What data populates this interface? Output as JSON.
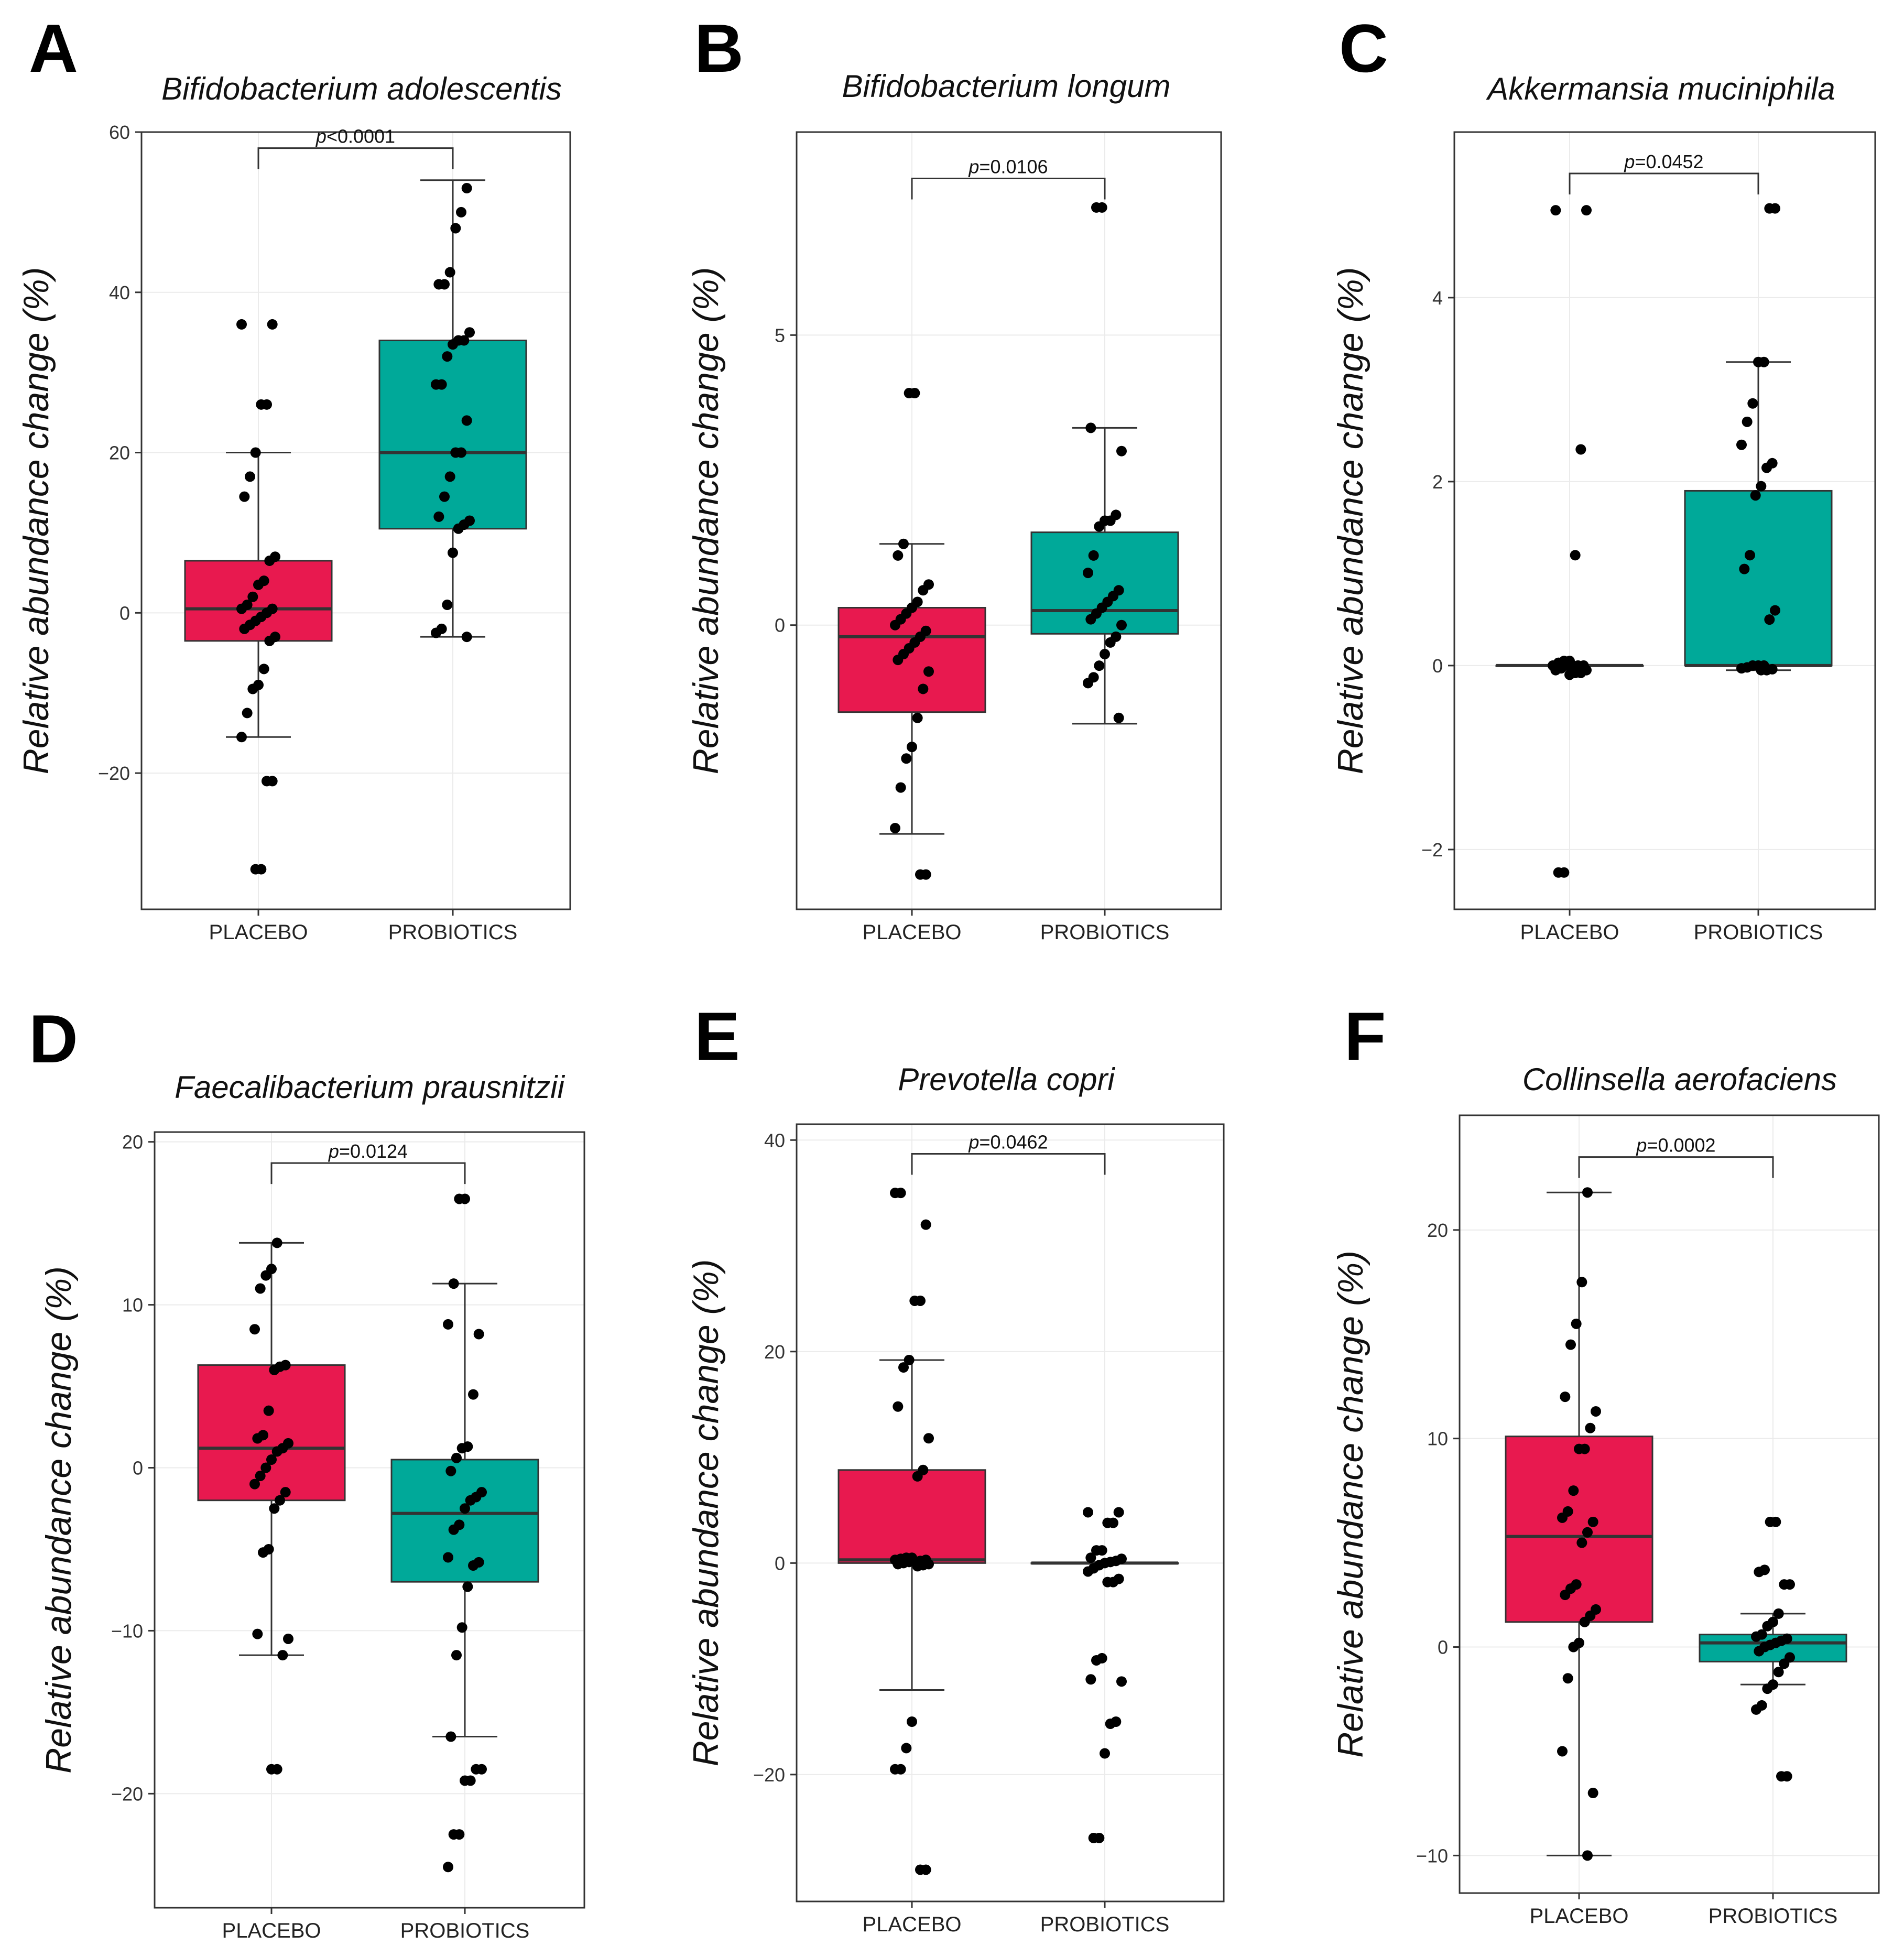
{
  "figure": {
    "colors": {
      "placebo": "#E8194F",
      "probiotics": "#00A999",
      "points": "#000000",
      "frame": "#333333",
      "grid": "#EBEBEB"
    },
    "p_prefix": "p"
  },
  "chart_data": [
    {
      "panel": "A",
      "type": "box",
      "title": "Bifidobacterium adolescentis",
      "ylabel": "Relative abundance change (%)",
      "categories": [
        "PLACEBO",
        "PROBIOTICS"
      ],
      "ylim": [
        -37,
        60
      ],
      "yticks": [
        -20,
        0,
        20,
        40,
        60
      ],
      "p_value": "<0.0001",
      "bracket_y": 58,
      "series": [
        {
          "name": "PLACEBO",
          "q1": -3.5,
          "median": 0.5,
          "q3": 6.5,
          "whisker_low": -15.5,
          "whisker_high": 20,
          "points": [
            36,
            36,
            26,
            26,
            20,
            17,
            14.5,
            7,
            6.5,
            4,
            3.5,
            2,
            1,
            0.5,
            0.5,
            0,
            -0.5,
            -1,
            -1.5,
            -2,
            -3,
            -3.5,
            -7,
            -9,
            -9.5,
            -12.5,
            -15.5,
            -21,
            -21,
            -32,
            -32
          ]
        },
        {
          "name": "PROBIOTICS",
          "q1": 10.5,
          "median": 20,
          "q3": 34,
          "whisker_low": -3,
          "whisker_high": 54,
          "points": [
            53,
            50,
            48,
            42.5,
            41,
            41,
            35,
            34,
            34,
            33.5,
            32,
            28.5,
            28.5,
            24,
            20,
            20,
            17,
            14.5,
            12,
            11.5,
            11,
            10.5,
            7.5,
            1,
            -2,
            -2.5,
            -3
          ]
        }
      ]
    },
    {
      "panel": "B",
      "type": "box",
      "title": "Bifidobacterium longum",
      "ylabel": "Relative abundance change (%)",
      "categories": [
        "PLACEBO",
        "PROBIOTICS"
      ],
      "ylim": [
        -4.9,
        8.5
      ],
      "yticks": [
        0,
        5
      ],
      "p_value": "0.0106",
      "bracket_y": 7.7,
      "series": [
        {
          "name": "PLACEBO",
          "q1": -1.5,
          "median": -0.2,
          "q3": 0.3,
          "whisker_low": -3.6,
          "whisker_high": 1.4,
          "points": [
            4,
            4,
            1.4,
            1.2,
            0.7,
            0.6,
            0.4,
            0.3,
            0.2,
            0.1,
            0,
            -0.1,
            -0.2,
            -0.3,
            -0.4,
            -0.5,
            -0.6,
            -0.8,
            -1.1,
            -1.6,
            -2.1,
            -2.3,
            -2.8,
            -3.5,
            -4.3,
            -4.3
          ]
        },
        {
          "name": "PROBIOTICS",
          "q1": -0.15,
          "median": 0.25,
          "q3": 1.6,
          "whisker_low": -1.7,
          "whisker_high": 3.4,
          "points": [
            7.2,
            7.2,
            3.4,
            3.0,
            1.9,
            1.8,
            1.8,
            1.7,
            1.2,
            0.9,
            0.6,
            0.5,
            0.4,
            0.3,
            0.2,
            0.1,
            0,
            -0.2,
            -0.3,
            -0.5,
            -0.7,
            -0.9,
            -1.0,
            -1.6
          ]
        }
      ]
    },
    {
      "panel": "C",
      "type": "box",
      "title": "Akkermansia muciniphila",
      "ylabel": "Relative abundance change (%)",
      "categories": [
        "PLACEBO",
        "PROBIOTICS"
      ],
      "ylim": [
        -2.65,
        5.8
      ],
      "yticks": [
        -2,
        0,
        2,
        4
      ],
      "p_value": "0.0452",
      "bracket_y": 5.35,
      "series": [
        {
          "name": "PLACEBO",
          "q1": 0,
          "median": 0,
          "q3": 0,
          "whisker_low": 0,
          "whisker_high": 0,
          "points": [
            4.95,
            4.95,
            2.35,
            1.2,
            0.05,
            0.05,
            0.03,
            0,
            0,
            0,
            0,
            0,
            -0.03,
            -0.05,
            -0.05,
            -0.08,
            -0.08,
            -0.1,
            -2.25,
            -2.25
          ]
        },
        {
          "name": "PROBIOTICS",
          "q1": 0,
          "median": 0,
          "q3": 1.9,
          "whisker_low": -0.05,
          "whisker_high": 3.3,
          "points": [
            4.97,
            4.97,
            3.3,
            3.3,
            2.85,
            2.65,
            2.4,
            2.2,
            2.15,
            1.95,
            1.85,
            1.2,
            1.05,
            0.6,
            0.5,
            0,
            0,
            0,
            -0.02,
            -0.03,
            -0.04,
            -0.05,
            -0.05
          ]
        }
      ]
    },
    {
      "panel": "D",
      "type": "box",
      "title": "Faecalibacterium prausnitzii",
      "ylabel": "Relative abundance change (%)",
      "categories": [
        "PLACEBO",
        "PROBIOTICS"
      ],
      "ylim": [
        -27,
        20.6
      ],
      "yticks": [
        -20,
        -10,
        0,
        10,
        20
      ],
      "p_value": "0.0124",
      "bracket_y": 18.7,
      "series": [
        {
          "name": "PLACEBO",
          "q1": -2,
          "median": 1.2,
          "q3": 6.3,
          "whisker_low": -11.5,
          "whisker_high": 13.8,
          "points": [
            13.8,
            12.2,
            11.8,
            11,
            8.5,
            6.3,
            6.2,
            6,
            3.5,
            2,
            1.8,
            1.5,
            1.2,
            1,
            0.5,
            0,
            -0.5,
            -1,
            -1.5,
            -2,
            -2.5,
            -5,
            -5.2,
            -10.2,
            -10.5,
            -11.5,
            -18.5,
            -18.5
          ]
        },
        {
          "name": "PROBIOTICS",
          "q1": -7,
          "median": -2.8,
          "q3": 0.5,
          "whisker_low": -16.5,
          "whisker_high": 11.3,
          "points": [
            16.5,
            16.5,
            11.3,
            8.8,
            8.2,
            4.5,
            1.3,
            1.2,
            0.6,
            -0.2,
            -1.5,
            -1.8,
            -2,
            -2.5,
            -3.5,
            -3.8,
            -5.5,
            -5.8,
            -6,
            -7.3,
            -9.8,
            -11.5,
            -16.5,
            -18.5,
            -18.5,
            -19.2,
            -19.2,
            -22.5,
            -22.5,
            -24.5
          ]
        }
      ]
    },
    {
      "panel": "E",
      "type": "box",
      "title": "Prevotella copri",
      "ylabel": "Relative abundance change (%)",
      "categories": [
        "PLACEBO",
        "PROBIOTICS"
      ],
      "ylim": [
        -32,
        41.5
      ],
      "yticks": [
        -20,
        0,
        20,
        40
      ],
      "p_value": "0.0462",
      "bracket_y": 38.7,
      "series": [
        {
          "name": "PLACEBO",
          "q1": 0,
          "median": 0.3,
          "q3": 8.8,
          "whisker_low": -12,
          "whisker_high": 19.2,
          "points": [
            35,
            35,
            32,
            24.8,
            24.8,
            19.2,
            18.5,
            14.8,
            11.8,
            8.8,
            8.2,
            0.5,
            0.5,
            0.4,
            0.3,
            0.3,
            0.2,
            0.2,
            0.1,
            0,
            -0.1,
            -0.1,
            -0.2,
            -0.3,
            -15,
            -17.5,
            -19.5,
            -19.5,
            -29,
            -29
          ]
        },
        {
          "name": "PROBIOTICS",
          "q1": 0,
          "median": 0,
          "q3": 0,
          "whisker_low": 0,
          "whisker_high": 0,
          "points": [
            4.8,
            4.8,
            3.8,
            3.8,
            1.2,
            1.2,
            0.5,
            0.4,
            0.2,
            0.1,
            0,
            -0.2,
            -0.5,
            -0.8,
            -1.5,
            -1.8,
            -1.8,
            -9,
            -9.2,
            -11,
            -11.2,
            -15,
            -15.2,
            -18,
            -26,
            -26
          ]
        }
      ]
    },
    {
      "panel": "F",
      "type": "box",
      "title": "Collinsella aerofaciens",
      "ylabel": "Relative abundance change (%)",
      "categories": [
        "PLACEBO",
        "PROBIOTICS"
      ],
      "ylim": [
        -11.8,
        25.5
      ],
      "yticks": [
        -10,
        0,
        10,
        20
      ],
      "p_value": "0.0002",
      "bracket_y": 23.5,
      "series": [
        {
          "name": "PLACEBO",
          "q1": 1.2,
          "median": 5.3,
          "q3": 10.1,
          "whisker_low": -10,
          "whisker_high": 21.8,
          "points": [
            21.8,
            17.5,
            15.5,
            14.5,
            12,
            11.3,
            10.5,
            9.5,
            9.5,
            7.5,
            6.5,
            6.2,
            6,
            5.5,
            5,
            3,
            2.8,
            2.5,
            1.8,
            1.5,
            1.2,
            0.2,
            0,
            -1.5,
            -5,
            -7,
            -10
          ]
        },
        {
          "name": "PROBIOTICS",
          "q1": -0.7,
          "median": 0.2,
          "q3": 0.6,
          "whisker_low": -1.8,
          "whisker_high": 1.6,
          "points": [
            6,
            6,
            3.7,
            3.6,
            3,
            3,
            1.6,
            1.2,
            1,
            0.6,
            0.5,
            0.4,
            0.3,
            0.2,
            0.1,
            0,
            -0.2,
            -0.5,
            -0.8,
            -1.2,
            -1.8,
            -2,
            -2.8,
            -3,
            -6.2,
            -6.2
          ]
        }
      ]
    }
  ]
}
